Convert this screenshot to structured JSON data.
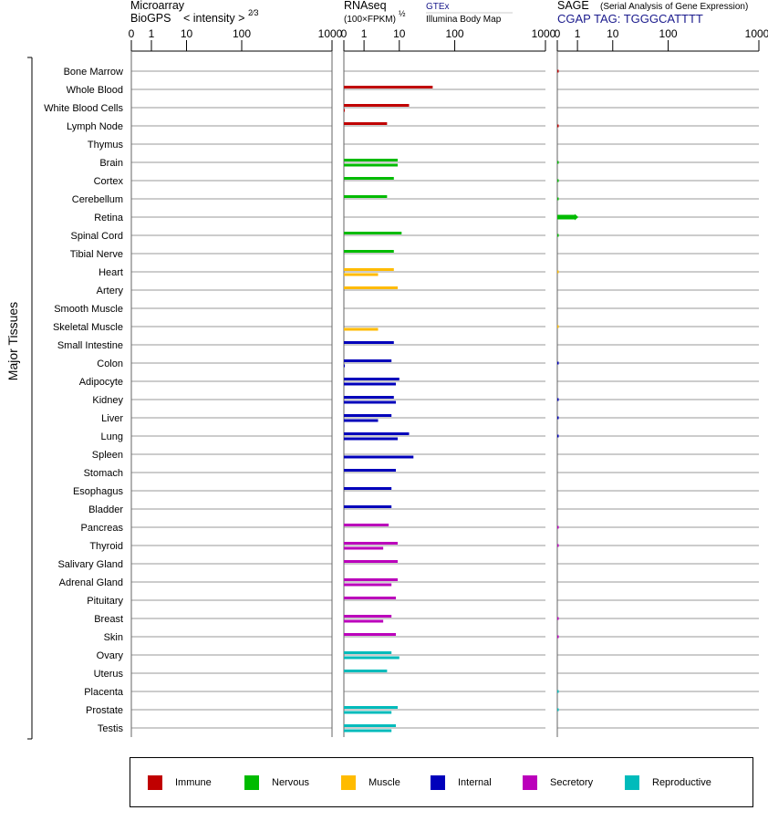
{
  "headers": {
    "microarray": {
      "line1": "Microarray",
      "line2": "BioGPS",
      "intensity": "< intensity >",
      "exponent": "2⁄3"
    },
    "rnaseq": {
      "line1": "RNAseq",
      "line2": "(100×FPKM)",
      "exponent": "½",
      "gtex": "GTEx",
      "ibm": "Illumina Body Map"
    },
    "sage": {
      "title": "SAGE",
      "subtitle": "(Serial Analysis of Gene Expression)",
      "tag_label": "CGAP TAG: TGGGCATTTT"
    }
  },
  "colors": {
    "Immune": "#c00000",
    "Nervous": "#00bb00",
    "Muscle": "#ffbb00",
    "Internal": "#0000bb",
    "Secretory": "#bb00bb",
    "Reproductive": "#00bbbb"
  },
  "legend": [
    "Immune",
    "Nervous",
    "Muscle",
    "Internal",
    "Secretory",
    "Reproductive"
  ],
  "chart_data": {
    "type": "bar",
    "orientation": "horizontal",
    "ylabel": "Major Tissues",
    "axis_ticks": [
      "0",
      "1",
      "10",
      "100",
      "1000"
    ],
    "categories": [
      "Bone Marrow",
      "Whole Blood",
      "White Blood Cells",
      "Lymph Node",
      "Thymus",
      "Brain",
      "Cortex",
      "Cerebellum",
      "Retina",
      "Spinal Cord",
      "Tibial Nerve",
      "Heart",
      "Artery",
      "Smooth Muscle",
      "Skeletal Muscle",
      "Small Intestine",
      "Colon",
      "Adipocyte",
      "Kidney",
      "Liver",
      "Lung",
      "Spleen",
      "Stomach",
      "Esophagus",
      "Bladder",
      "Pancreas",
      "Thyroid",
      "Salivary Gland",
      "Adrenal Gland",
      "Pituitary",
      "Breast",
      "Skin",
      "Ovary",
      "Uterus",
      "Placenta",
      "Prostate",
      "Testis"
    ],
    "groups": [
      "Immune",
      "Immune",
      "Immune",
      "Immune",
      "Immune",
      "Nervous",
      "Nervous",
      "Nervous",
      "Nervous",
      "Nervous",
      "Nervous",
      "Muscle",
      "Muscle",
      "Muscle",
      "Muscle",
      "Internal",
      "Internal",
      "Internal",
      "Internal",
      "Internal",
      "Internal",
      "Internal",
      "Internal",
      "Internal",
      "Internal",
      "Secretory",
      "Secretory",
      "Secretory",
      "Secretory",
      "Secretory",
      "Secretory",
      "Secretory",
      "Reproductive",
      "Reproductive",
      "Reproductive",
      "Reproductive",
      "Reproductive"
    ],
    "panels": [
      {
        "name": "Microarray",
        "scale": "intensity^(2/3)",
        "gtex": [],
        "ibm": []
      },
      {
        "name": "RNAseq",
        "scale": "sqrt(100×FPKM)",
        "gtex": [
          null,
          40,
          15,
          4.5,
          null,
          9,
          7,
          4.5,
          null,
          11,
          7,
          7,
          9,
          null,
          null,
          7,
          6,
          10,
          7,
          6,
          15,
          null,
          8,
          6,
          6,
          5,
          9,
          9,
          9,
          8,
          6,
          8,
          6,
          4.5,
          null,
          9,
          8
        ],
        "ibm": [
          null,
          null,
          0.01,
          null,
          null,
          9,
          null,
          null,
          null,
          null,
          null,
          2.5,
          null,
          null,
          2.5,
          null,
          0.01,
          8,
          8,
          2.5,
          9,
          18,
          null,
          null,
          null,
          null,
          3.5,
          null,
          6,
          null,
          3.5,
          null,
          10,
          null,
          null,
          6,
          6
        ]
      },
      {
        "name": "SAGE",
        "scale": "tags per million",
        "values": [
          0.02,
          null,
          null,
          0.02,
          null,
          0.02,
          0.02,
          0.02,
          1,
          0.02,
          null,
          0.01,
          null,
          null,
          0.01,
          null,
          0.02,
          null,
          0.02,
          0.02,
          0.02,
          null,
          null,
          null,
          null,
          0.02,
          0.02,
          null,
          null,
          null,
          0.02,
          0.02,
          null,
          null,
          0.02,
          0.02,
          null
        ]
      }
    ]
  }
}
